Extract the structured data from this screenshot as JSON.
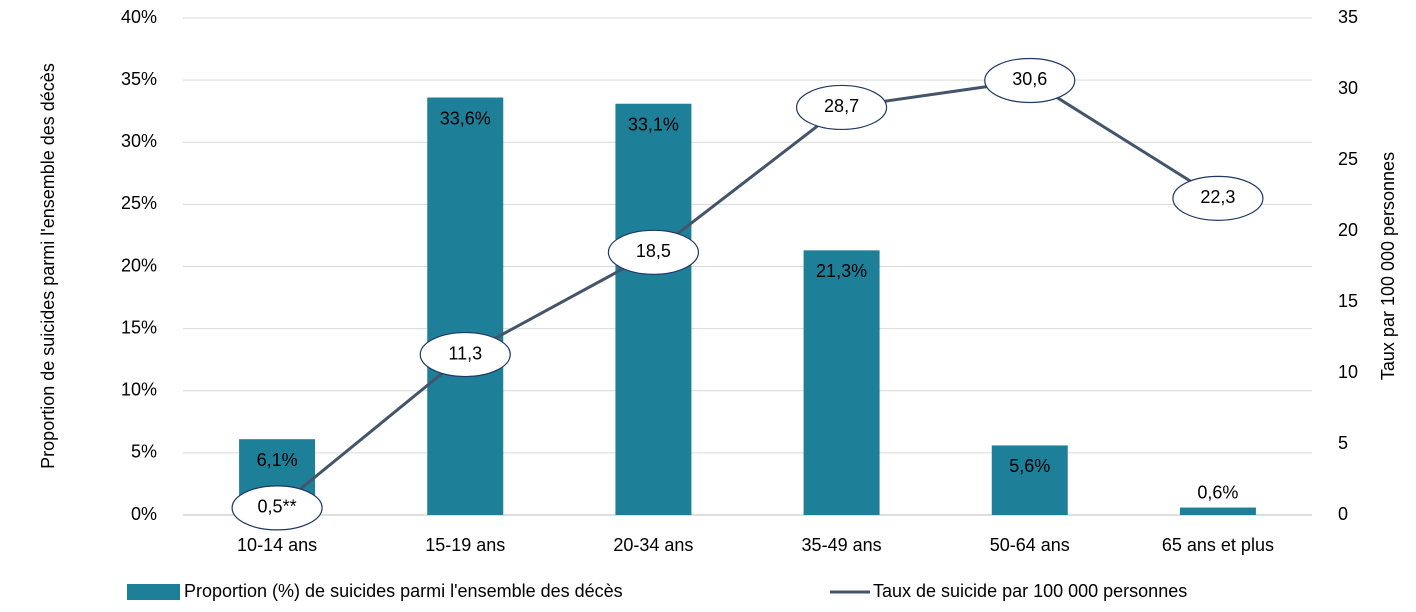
{
  "chart_data": {
    "type": "bar",
    "categories": [
      "10-14 ans",
      "15-19 ans",
      "20-34 ans",
      "35-49 ans",
      "50-64 ans",
      "65 ans et plus"
    ],
    "y_label": "Proportion de suicides parmi l'ensemble des décès",
    "y2_label": "Taux par 100 000 personnes",
    "ylim": [
      0,
      40
    ],
    "yticks": [
      {
        "value": 0,
        "label": "0%"
      },
      {
        "value": 5,
        "label": "5%"
      },
      {
        "value": 10,
        "label": "10%"
      },
      {
        "value": 15,
        "label": "15%"
      },
      {
        "value": 20,
        "label": "20%"
      },
      {
        "value": 25,
        "label": "25%"
      },
      {
        "value": 30,
        "label": "30%"
      },
      {
        "value": 35,
        "label": "35%"
      },
      {
        "value": 40,
        "label": "40%"
      }
    ],
    "y2lim": [
      0,
      35
    ],
    "y2ticks": [
      0,
      5,
      10,
      15,
      20,
      25,
      30,
      35
    ],
    "grid": true,
    "legend": "bottom",
    "series": [
      {
        "name": "Proportion (%) de suicides parmi l'ensemble des décès",
        "type": "bar",
        "color": "#1e7f98",
        "values": [
          6.1,
          33.6,
          33.1,
          21.3,
          5.6,
          0.6
        ],
        "value_labels": [
          "6,1%",
          "33,6%",
          "33,1%",
          "21,3%",
          "5,6%",
          "0,6%"
        ]
      },
      {
        "name": "Taux de suicide par 100 000 personnes",
        "type": "line",
        "axis": "y2",
        "color": "#44546a",
        "values": [
          0.5,
          11.3,
          18.5,
          28.7,
          30.6,
          22.3
        ],
        "value_labels": [
          "0,5**",
          "11,3",
          "18,5",
          "28,7",
          "30,6",
          "22,3"
        ]
      }
    ]
  }
}
